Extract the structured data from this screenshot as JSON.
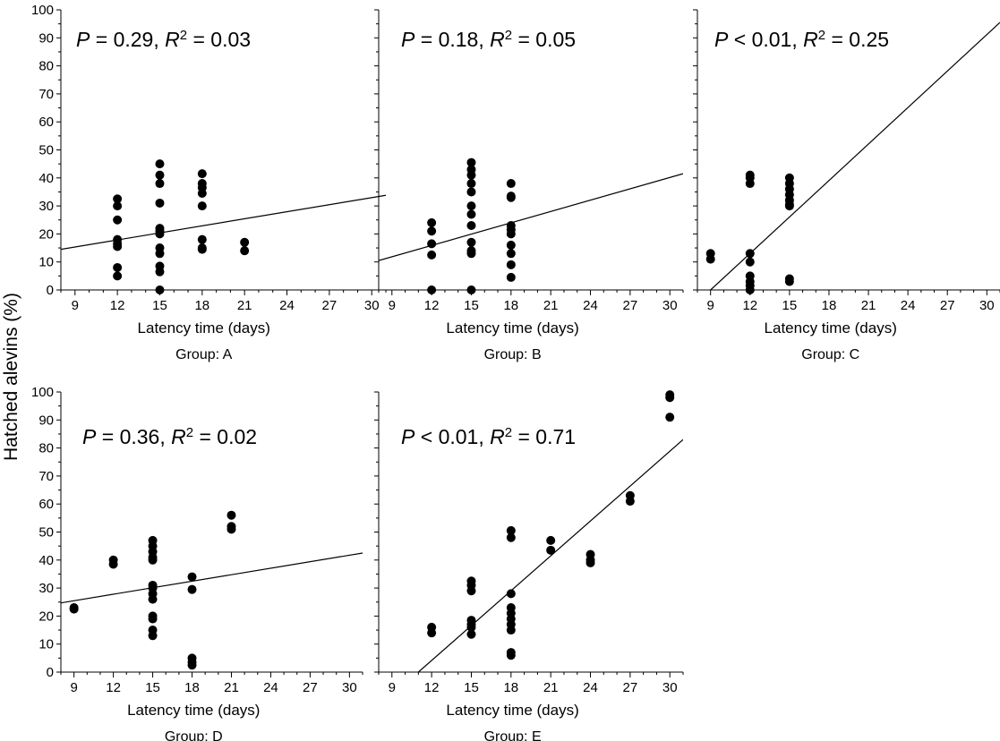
{
  "figure": {
    "ylabel": "Hatched alevins (%)"
  },
  "chart_data": [
    {
      "type": "scatter",
      "group": "Group: A",
      "stat": {
        "p_label": "P",
        "p_rel": " = ",
        "p_val": "0.29",
        "r_label": "R",
        "r_sup": "2",
        "r_rel": " = ",
        "r_val": "0.03"
      },
      "xlabel": "Latency time (days)",
      "ylabel": "Hatched alevins (%)",
      "xlim": [
        8,
        31
      ],
      "ylim": [
        0,
        100
      ],
      "xticks": [
        9,
        12,
        15,
        18,
        21,
        24,
        27,
        30
      ],
      "yticks": [
        0,
        10,
        20,
        30,
        40,
        50,
        60,
        70,
        80,
        90,
        100
      ],
      "points": [
        [
          12,
          32.5
        ],
        [
          12,
          30
        ],
        [
          12,
          25
        ],
        [
          12,
          18
        ],
        [
          12,
          16.5
        ],
        [
          12,
          15.5
        ],
        [
          12,
          8
        ],
        [
          12,
          5
        ],
        [
          15,
          45
        ],
        [
          15,
          41
        ],
        [
          15,
          38
        ],
        [
          15,
          31
        ],
        [
          15,
          22
        ],
        [
          15,
          21
        ],
        [
          15,
          20
        ],
        [
          15,
          15
        ],
        [
          15,
          13
        ],
        [
          15,
          8.5
        ],
        [
          15,
          6.5
        ],
        [
          15,
          0
        ],
        [
          18,
          41.5
        ],
        [
          18,
          38
        ],
        [
          18,
          36.5
        ],
        [
          18,
          34.5
        ],
        [
          18,
          30
        ],
        [
          18,
          18
        ],
        [
          18,
          15
        ],
        [
          18,
          14.5
        ],
        [
          21,
          17
        ],
        [
          21,
          14
        ]
      ],
      "fit": {
        "x": [
          8,
          31
        ],
        "y": [
          14.5,
          33.8
        ]
      }
    },
    {
      "type": "scatter",
      "group": "Group: B",
      "stat": {
        "p_label": "P",
        "p_rel": " = ",
        "p_val": "0.18",
        "r_label": "R",
        "r_sup": "2",
        "r_rel": " = ",
        "r_val": "0.05"
      },
      "xlabel": "Latency time (days)",
      "xlim": [
        8,
        31
      ],
      "ylim": [
        0,
        100
      ],
      "xticks": [
        9,
        12,
        15,
        18,
        21,
        24,
        27,
        30
      ],
      "yticks": [
        0,
        10,
        20,
        30,
        40,
        50,
        60,
        70,
        80,
        90,
        100
      ],
      "points": [
        [
          12,
          24
        ],
        [
          12,
          21
        ],
        [
          12,
          16.5
        ],
        [
          12,
          12.5
        ],
        [
          12,
          0
        ],
        [
          15,
          45.5
        ],
        [
          15,
          43
        ],
        [
          15,
          41
        ],
        [
          15,
          38
        ],
        [
          15,
          35
        ],
        [
          15,
          30
        ],
        [
          15,
          27
        ],
        [
          15,
          23
        ],
        [
          15,
          17
        ],
        [
          15,
          14
        ],
        [
          15,
          13
        ],
        [
          15,
          0
        ],
        [
          18,
          38
        ],
        [
          18,
          33.5
        ],
        [
          18,
          33
        ],
        [
          18,
          23
        ],
        [
          18,
          21.5
        ],
        [
          18,
          20
        ],
        [
          18,
          16
        ],
        [
          18,
          13
        ],
        [
          18,
          9
        ],
        [
          18,
          4.5
        ]
      ],
      "fit": {
        "x": [
          8,
          31
        ],
        "y": [
          10.5,
          41.5
        ]
      }
    },
    {
      "type": "scatter",
      "group": "Group: C",
      "stat": {
        "p_label": "P",
        "p_rel": " < ",
        "p_val": "0.01",
        "r_label": "R",
        "r_sup": "2",
        "r_rel": " = ",
        "r_val": "0.25"
      },
      "xlabel": "Latency time (days)",
      "xlim": [
        8,
        31
      ],
      "ylim": [
        0,
        100
      ],
      "xticks": [
        9,
        12,
        15,
        18,
        21,
        24,
        27,
        30
      ],
      "yticks": [
        0,
        10,
        20,
        30,
        40,
        50,
        60,
        70,
        80,
        90,
        100
      ],
      "points": [
        [
          9,
          13
        ],
        [
          9,
          11
        ],
        [
          12,
          41
        ],
        [
          12,
          40
        ],
        [
          12,
          38
        ],
        [
          12,
          13
        ],
        [
          12,
          10
        ],
        [
          12,
          5
        ],
        [
          12,
          3
        ],
        [
          12,
          1.5
        ],
        [
          12,
          0
        ],
        [
          15,
          40
        ],
        [
          15,
          38
        ],
        [
          15,
          36
        ],
        [
          15,
          34
        ],
        [
          15,
          32
        ],
        [
          15,
          30.5
        ],
        [
          15,
          30
        ],
        [
          15,
          4
        ],
        [
          15,
          3
        ]
      ],
      "fit": {
        "x": [
          9,
          31
        ],
        "y": [
          0,
          95.5
        ]
      }
    },
    {
      "type": "scatter",
      "group": "Group: D",
      "stat": {
        "p_label": "P",
        "p_rel": " = ",
        "p_val": "0.36",
        "r_label": "R",
        "r_sup": "2",
        "r_rel": " = ",
        "r_val": "0.02"
      },
      "xlabel": "Latency time (days)",
      "xlim": [
        8,
        31
      ],
      "ylim": [
        0,
        100
      ],
      "xticks": [
        9,
        12,
        15,
        18,
        21,
        24,
        27,
        30
      ],
      "yticks": [
        0,
        10,
        20,
        30,
        40,
        50,
        60,
        70,
        80,
        90,
        100
      ],
      "points": [
        [
          9,
          23
        ],
        [
          9,
          22.5
        ],
        [
          12,
          40
        ],
        [
          12,
          38.5
        ],
        [
          15,
          47
        ],
        [
          15,
          45
        ],
        [
          15,
          43
        ],
        [
          15,
          41
        ],
        [
          15,
          40
        ],
        [
          15,
          31
        ],
        [
          15,
          30
        ],
        [
          15,
          28
        ],
        [
          15,
          26
        ],
        [
          15,
          20
        ],
        [
          15,
          19
        ],
        [
          15,
          15
        ],
        [
          15,
          13
        ],
        [
          18,
          34
        ],
        [
          18,
          29.5
        ],
        [
          18,
          5
        ],
        [
          18,
          3.5
        ],
        [
          18,
          2.5
        ],
        [
          21,
          56
        ],
        [
          21,
          52
        ],
        [
          21,
          51
        ]
      ],
      "fit": {
        "x": [
          8,
          31
        ],
        "y": [
          24.7,
          42.5
        ]
      }
    },
    {
      "type": "scatter",
      "group": "Group: E",
      "stat": {
        "p_label": "P",
        "p_rel": " < ",
        "p_val": "0.01",
        "r_label": "R",
        "r_sup": "2",
        "r_rel": " = ",
        "r_val": "0.71"
      },
      "xlabel": "Latency time (days)",
      "xlim": [
        8,
        31
      ],
      "ylim": [
        0,
        100
      ],
      "xticks": [
        9,
        12,
        15,
        18,
        21,
        24,
        27,
        30
      ],
      "yticks": [
        0,
        10,
        20,
        30,
        40,
        50,
        60,
        70,
        80,
        90,
        100
      ],
      "points": [
        [
          12,
          16
        ],
        [
          12,
          14
        ],
        [
          15,
          32.5
        ],
        [
          15,
          31
        ],
        [
          15,
          29
        ],
        [
          15,
          18.5
        ],
        [
          15,
          17
        ],
        [
          15,
          16
        ],
        [
          15,
          13.5
        ],
        [
          18,
          50.5
        ],
        [
          18,
          48
        ],
        [
          18,
          28
        ],
        [
          18,
          23
        ],
        [
          18,
          21
        ],
        [
          18,
          19
        ],
        [
          18,
          17
        ],
        [
          18,
          15
        ],
        [
          18,
          7
        ],
        [
          18,
          6
        ],
        [
          21,
          47
        ],
        [
          21,
          43.5
        ],
        [
          24,
          42
        ],
        [
          24,
          40
        ],
        [
          24,
          39
        ],
        [
          27,
          63
        ],
        [
          27,
          61
        ],
        [
          30,
          99
        ],
        [
          30,
          98
        ],
        [
          30,
          91
        ]
      ],
      "fit": {
        "x": [
          11,
          31
        ],
        "y": [
          0,
          83
        ]
      }
    }
  ]
}
